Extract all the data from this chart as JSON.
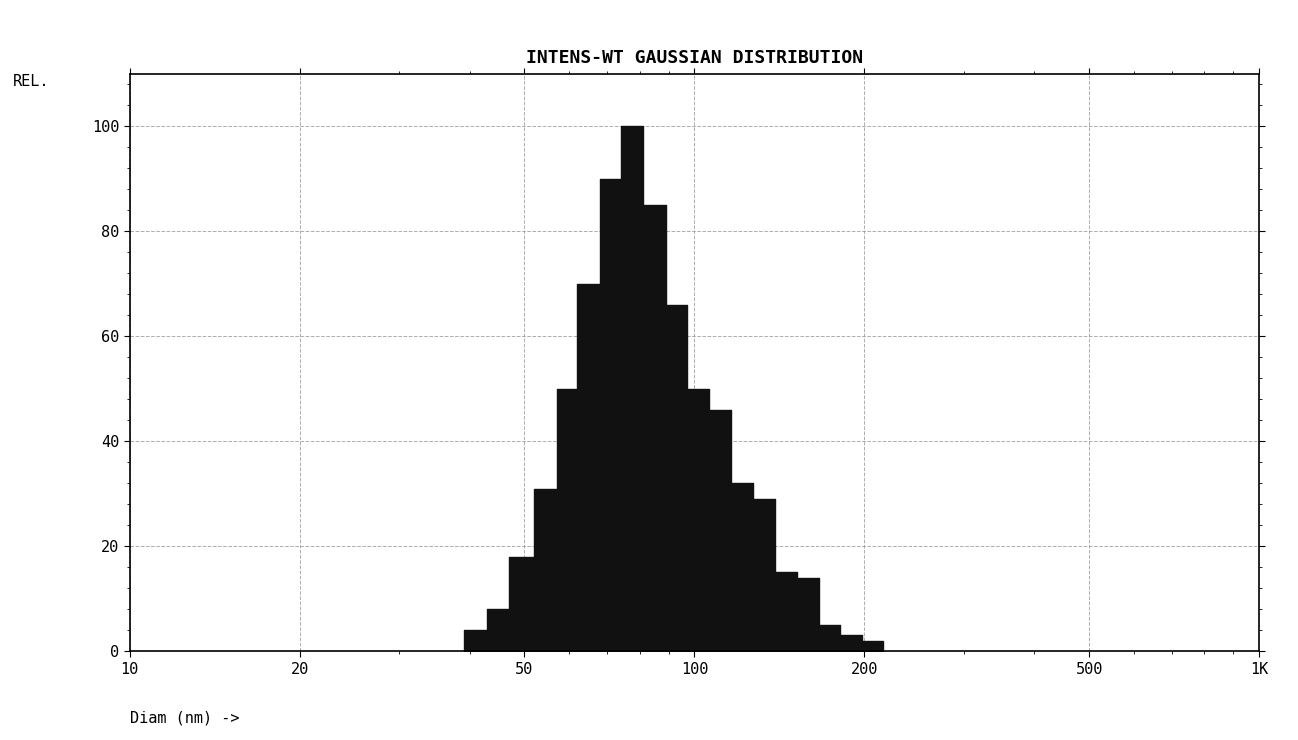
{
  "title": "INTENS-WT GAUSSIAN DISTRIBUTION",
  "ylabel": "REL.",
  "xlabel": "Diam (nm) ->",
  "background_color": "#ffffff",
  "plot_bg_color": "#ffffff",
  "title_fontsize": 13,
  "label_fontsize": 11,
  "tick_fontsize": 11,
  "ylim": [
    0,
    110
  ],
  "yticks": [
    0,
    20,
    40,
    60,
    80,
    100
  ],
  "xtick_labels": [
    "10",
    "20",
    "50",
    "100",
    "200",
    "500",
    "1K"
  ],
  "xtick_values": [
    10,
    20,
    50,
    100,
    200,
    500,
    1000
  ],
  "xlim_log": [
    10,
    1000
  ],
  "bar_color": "#111111",
  "bars": [
    {
      "x_left": 39,
      "x_right": 43,
      "height": 4
    },
    {
      "x_left": 43,
      "x_right": 47,
      "height": 8
    },
    {
      "x_left": 47,
      "x_right": 52,
      "height": 18
    },
    {
      "x_left": 52,
      "x_right": 57,
      "height": 31
    },
    {
      "x_left": 57,
      "x_right": 62,
      "height": 50
    },
    {
      "x_left": 62,
      "x_right": 68,
      "height": 70
    },
    {
      "x_left": 68,
      "x_right": 74,
      "height": 90
    },
    {
      "x_left": 74,
      "x_right": 81,
      "height": 100
    },
    {
      "x_left": 81,
      "x_right": 89,
      "height": 85
    },
    {
      "x_left": 89,
      "x_right": 97,
      "height": 66
    },
    {
      "x_left": 97,
      "x_right": 106,
      "height": 50
    },
    {
      "x_left": 106,
      "x_right": 116,
      "height": 46
    },
    {
      "x_left": 116,
      "x_right": 127,
      "height": 32
    },
    {
      "x_left": 127,
      "x_right": 139,
      "height": 29
    },
    {
      "x_left": 139,
      "x_right": 152,
      "height": 15
    },
    {
      "x_left": 152,
      "x_right": 166,
      "height": 14
    },
    {
      "x_left": 166,
      "x_right": 181,
      "height": 5
    },
    {
      "x_left": 181,
      "x_right": 198,
      "height": 3
    },
    {
      "x_left": 198,
      "x_right": 216,
      "height": 2
    }
  ]
}
